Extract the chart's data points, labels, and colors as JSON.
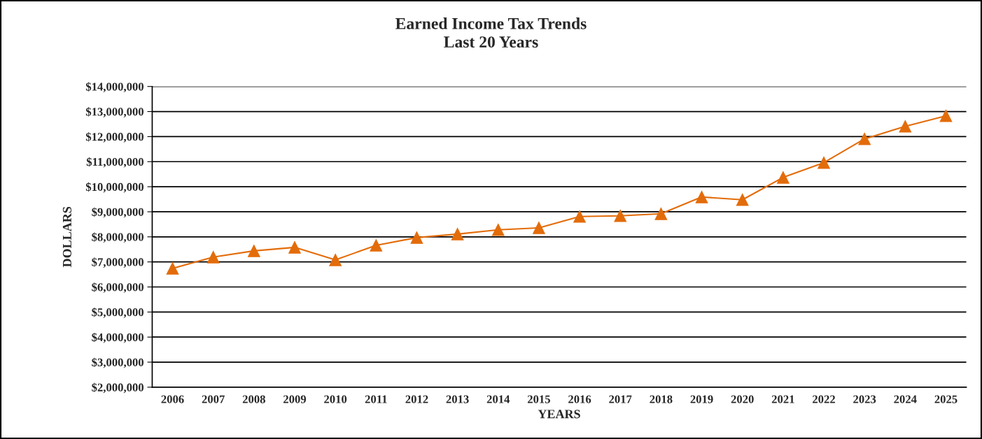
{
  "chart_data": {
    "type": "line",
    "title": "Earned Income Tax Trends\nLast 20 Years",
    "xlabel": "YEARS",
    "ylabel": "DOLLARS",
    "categories": [
      "2006",
      "2007",
      "2008",
      "2009",
      "2010",
      "2011",
      "2012",
      "2013",
      "2014",
      "2015",
      "2016",
      "2017",
      "2018",
      "2019",
      "2020",
      "2021",
      "2022",
      "2023",
      "2024",
      "2025"
    ],
    "series": [
      {
        "color": "#e36c0a",
        "values": [
          6740000,
          7190000,
          7440000,
          7580000,
          7080000,
          7660000,
          7970000,
          8110000,
          8280000,
          8360000,
          8810000,
          8840000,
          8920000,
          9590000,
          9480000,
          10370000,
          10960000,
          11910000,
          12410000,
          12830000
        ]
      }
    ],
    "ylim": [
      2000000,
      14000000
    ],
    "yticks": [
      {
        "value": 2000000,
        "label": "$2,000,000"
      },
      {
        "value": 3000000,
        "label": "$3,000,000"
      },
      {
        "value": 4000000,
        "label": "$4,000,000"
      },
      {
        "value": 5000000,
        "label": "$5,000,000"
      },
      {
        "value": 6000000,
        "label": "$6,000,000"
      },
      {
        "value": 7000000,
        "label": "$7,000,000"
      },
      {
        "value": 8000000,
        "label": "$8,000,000"
      },
      {
        "value": 9000000,
        "label": "$9,000,000"
      },
      {
        "value": 10000000,
        "label": "$10,000,000"
      },
      {
        "value": 11000000,
        "label": "$11,000,000"
      },
      {
        "value": 12000000,
        "label": "$12,000,000"
      },
      {
        "value": 13000000,
        "label": "$13,000,000"
      },
      {
        "value": 14000000,
        "label": "$14,000,000"
      }
    ],
    "grid": "y",
    "marker": "triangle",
    "line_style": "solid"
  }
}
